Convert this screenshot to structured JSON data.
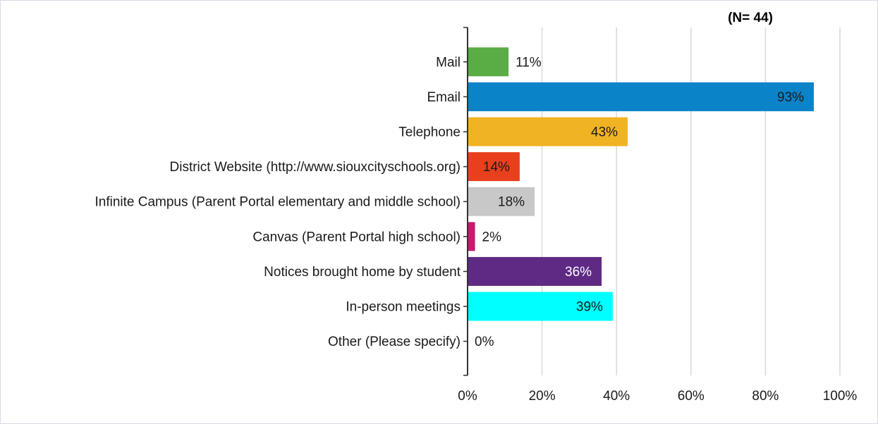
{
  "chart_data": {
    "type": "bar",
    "orientation": "horizontal",
    "annotation": "(N= 44)",
    "categories": [
      "Mail",
      "Email",
      "Telephone",
      "District Website (http://www.siouxcityschools.org)",
      "Infinite Campus (Parent Portal elementary and middle school)",
      "Canvas (Parent Portal high school)",
      "Notices brought home by student",
      "In-person meetings",
      "Other (Please specify)"
    ],
    "values": [
      11,
      93,
      43,
      14,
      18,
      2,
      36,
      39,
      0
    ],
    "data_labels": [
      "11%",
      "93%",
      "43%",
      "14%",
      "18%",
      "2%",
      "36%",
      "39%",
      "0%"
    ],
    "colors": [
      "#5aac44",
      "#0a83c8",
      "#f0b323",
      "#e8401c",
      "#c8c8c8",
      "#c71a6e",
      "#5e2a83",
      "#00ffff",
      "#999999"
    ],
    "label_colors": [
      "#1a1a1a",
      "#1a1a1a",
      "#1a1a1a",
      "#1a1a1a",
      "#1a1a1a",
      "#1a1a1a",
      "#ffffff",
      "#1a1a1a",
      "#1a1a1a"
    ],
    "xlim": [
      0,
      100
    ],
    "x_ticks": [
      0,
      20,
      40,
      60,
      80,
      100
    ],
    "x_tick_labels": [
      "0%",
      "20%",
      "40%",
      "60%",
      "80%",
      "100%"
    ],
    "grid": true,
    "legend": "none"
  }
}
